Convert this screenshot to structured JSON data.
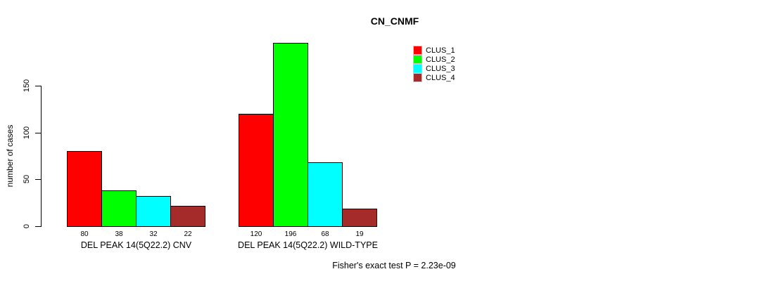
{
  "chart_data": {
    "type": "bar",
    "title": "CN_CNMF",
    "ylabel": "number of cases",
    "xlabel": "",
    "ylim": [
      0,
      150
    ],
    "yticks": [
      0,
      50,
      100,
      150
    ],
    "grid": false,
    "legend_position": "top-right",
    "categories": [
      "DEL PEAK 14(5Q22.2) CNV",
      "DEL PEAK 14(5Q22.2) WILD-TYPE"
    ],
    "series": [
      {
        "name": "CLUS_1",
        "color": "#ff0000",
        "values": [
          80,
          120
        ]
      },
      {
        "name": "CLUS_2",
        "color": "#00ff00",
        "values": [
          38,
          196
        ]
      },
      {
        "name": "CLUS_3",
        "color": "#00ffff",
        "values": [
          32,
          68
        ]
      },
      {
        "name": "CLUS_4",
        "color": "#a52a2a",
        "values": [
          22,
          19
        ]
      }
    ],
    "bar_value_labels_shown": true,
    "annotation": "Fisher's exact test P = 2.23e-09"
  }
}
